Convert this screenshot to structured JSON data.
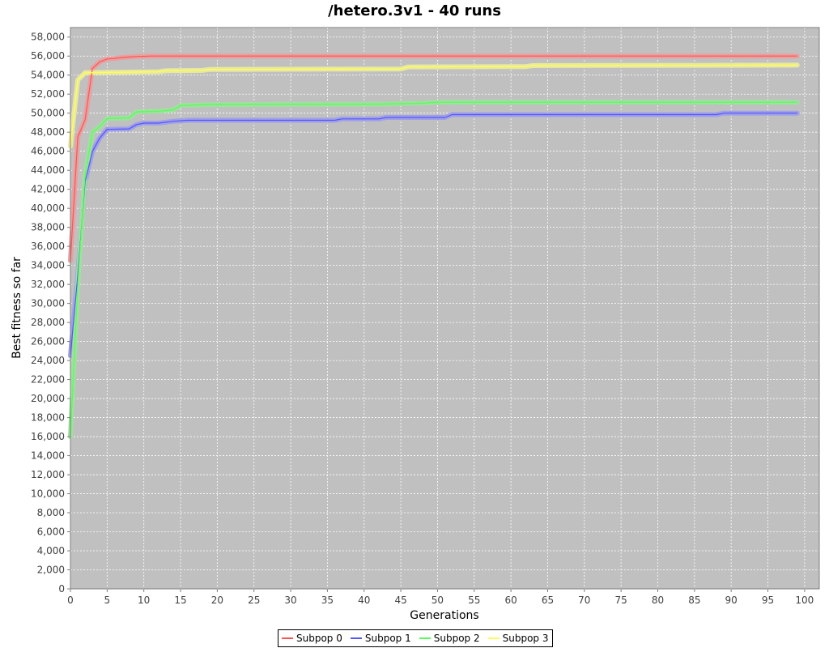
{
  "chart_data": {
    "type": "line",
    "title": "/hetero.3v1 - 40 runs",
    "xlabel": "Generations",
    "ylabel": "Best fitness so far",
    "xlim": [
      0,
      102
    ],
    "ylim": [
      0,
      59000
    ],
    "xticks": [
      0,
      5,
      10,
      15,
      20,
      25,
      30,
      35,
      40,
      45,
      50,
      55,
      60,
      65,
      70,
      75,
      80,
      85,
      90,
      95,
      100
    ],
    "yticks": [
      0,
      2000,
      4000,
      6000,
      8000,
      10000,
      12000,
      14000,
      16000,
      18000,
      20000,
      22000,
      24000,
      26000,
      28000,
      30000,
      32000,
      34000,
      36000,
      38000,
      40000,
      42000,
      44000,
      46000,
      48000,
      50000,
      52000,
      54000,
      56000,
      58000
    ],
    "ytick_labels": [
      "0",
      "2,000",
      "4,000",
      "6,000",
      "8,000",
      "10,000",
      "12,000",
      "14,000",
      "16,000",
      "18,000",
      "20,000",
      "22,000",
      "24,000",
      "26,000",
      "28,000",
      "30,000",
      "32,000",
      "34,000",
      "36,000",
      "38,000",
      "40,000",
      "42,000",
      "44,000",
      "46,000",
      "48,000",
      "50,000",
      "52,000",
      "54,000",
      "56,000",
      "58,000"
    ],
    "grid": true,
    "legend_position": "bottom",
    "background": "#c0c0c0",
    "series": [
      {
        "name": "Subpop 0",
        "color": "#ff5555",
        "band_color": "#e8a0a0",
        "points": [
          [
            0,
            34500
          ],
          [
            1,
            47500
          ],
          [
            2,
            49300
          ],
          [
            3,
            54700
          ],
          [
            4,
            55400
          ],
          [
            5,
            55700
          ],
          [
            6,
            55750
          ],
          [
            7,
            55850
          ],
          [
            8,
            55900
          ],
          [
            9,
            55950
          ],
          [
            11,
            56000
          ],
          [
            99,
            56000
          ]
        ]
      },
      {
        "name": "Subpop 1",
        "color": "#5555ff",
        "band_color": "#a0a0e8",
        "points": [
          [
            0,
            24500
          ],
          [
            1,
            33000
          ],
          [
            2,
            42800
          ],
          [
            3,
            46000
          ],
          [
            4,
            47400
          ],
          [
            5,
            48300
          ],
          [
            8,
            48350
          ],
          [
            9,
            48800
          ],
          [
            10,
            48950
          ],
          [
            12,
            48950
          ],
          [
            14,
            49150
          ],
          [
            16,
            49250
          ],
          [
            36,
            49250
          ],
          [
            37,
            49400
          ],
          [
            42,
            49400
          ],
          [
            43,
            49550
          ],
          [
            51,
            49550
          ],
          [
            52,
            49850
          ],
          [
            88,
            49850
          ],
          [
            89,
            50000
          ],
          [
            99,
            50000
          ]
        ]
      },
      {
        "name": "Subpop 2",
        "color": "#55ff55",
        "band_color": "#a0e0a0",
        "points": [
          [
            0,
            16000
          ],
          [
            1,
            32000
          ],
          [
            2,
            43500
          ],
          [
            3,
            48000
          ],
          [
            4,
            48600
          ],
          [
            5,
            49450
          ],
          [
            8,
            49500
          ],
          [
            9,
            50150
          ],
          [
            12,
            50200
          ],
          [
            14,
            50350
          ],
          [
            15,
            50800
          ],
          [
            19,
            50900
          ],
          [
            42,
            50950
          ],
          [
            45,
            51000
          ],
          [
            48,
            51050
          ],
          [
            50,
            51150
          ],
          [
            99,
            51150
          ]
        ]
      },
      {
        "name": "Subpop 3",
        "color": "#ffff55",
        "band_color": "#e8e8a0",
        "points": [
          [
            0,
            46500
          ],
          [
            1,
            53500
          ],
          [
            2,
            54250
          ],
          [
            12,
            54350
          ],
          [
            13,
            54450
          ],
          [
            18,
            54500
          ],
          [
            19,
            54600
          ],
          [
            45,
            54650
          ],
          [
            46,
            54850
          ],
          [
            62,
            54900
          ],
          [
            63,
            55000
          ],
          [
            99,
            55050
          ]
        ]
      }
    ]
  }
}
